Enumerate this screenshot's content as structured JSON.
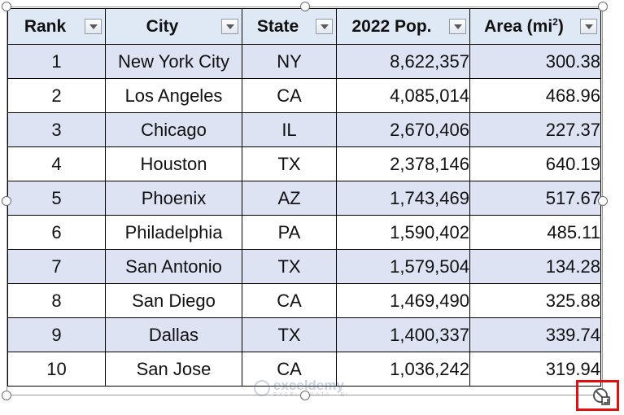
{
  "table": {
    "headers": {
      "rank": "Rank",
      "city": "City",
      "state": "State",
      "pop": "2022 Pop.",
      "area": "Area (mi",
      "area_sup": "2",
      "area_close": ")"
    },
    "rows": [
      {
        "rank": "1",
        "city": "New York City",
        "state": "NY",
        "pop": "8,622,357",
        "area": "300.38"
      },
      {
        "rank": "2",
        "city": "Los Angeles",
        "state": "CA",
        "pop": "4,085,014",
        "area": "468.96"
      },
      {
        "rank": "3",
        "city": "Chicago",
        "state": "IL",
        "pop": "2,670,406",
        "area": "227.37"
      },
      {
        "rank": "4",
        "city": "Houston",
        "state": "TX",
        "pop": "2,378,146",
        "area": "640.19"
      },
      {
        "rank": "5",
        "city": "Phoenix",
        "state": "AZ",
        "pop": "1,743,469",
        "area": "517.67"
      },
      {
        "rank": "6",
        "city": "Philadelphia",
        "state": "PA",
        "pop": "1,590,402",
        "area": "485.11"
      },
      {
        "rank": "7",
        "city": "San Antonio",
        "state": "TX",
        "pop": "1,579,504",
        "area": "134.28"
      },
      {
        "rank": "8",
        "city": "San Diego",
        "state": "CA",
        "pop": "1,469,490",
        "area": "325.88"
      },
      {
        "rank": "9",
        "city": "Dallas",
        "state": "TX",
        "pop": "1,400,337",
        "area": "339.74"
      },
      {
        "rank": "10",
        "city": "San Jose",
        "state": "CA",
        "pop": "1,036,242",
        "area": "319.94"
      }
    ]
  },
  "watermark": {
    "name": "exceldemy",
    "tagline": "EXCEL · DATA · BI"
  },
  "colors": {
    "header_bg": "#dfe8f5",
    "band_bg": "#dde3f3",
    "highlight": "#e01010"
  }
}
